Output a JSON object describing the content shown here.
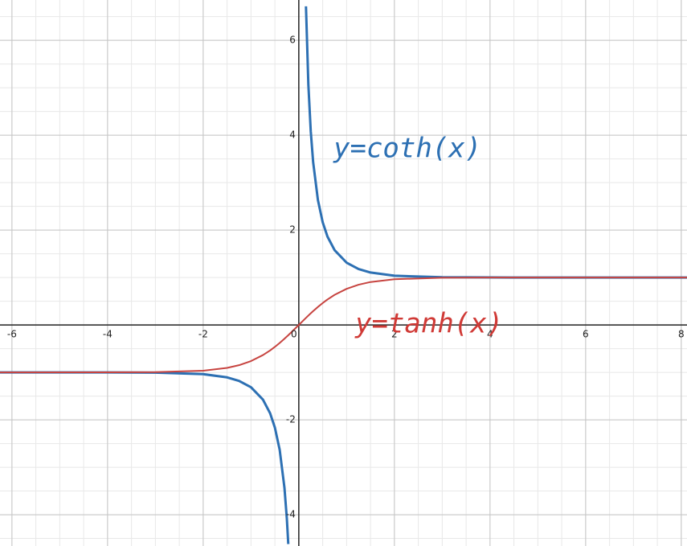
{
  "chart_data": {
    "type": "line",
    "annotations": [
      "y=coth(x)",
      "y=tanh(x)"
    ],
    "x": [
      -6.25,
      -4,
      -3,
      -2,
      -1.5,
      -1.25,
      -1,
      -0.75,
      -0.6,
      -0.5,
      -0.4,
      -0.3,
      -0.25,
      -0.22,
      0,
      0.15,
      0.2,
      0.25,
      0.3,
      0.4,
      0.5,
      0.6,
      0.75,
      1,
      1.25,
      1.5,
      2,
      3,
      4,
      6,
      8.12
    ],
    "series": [
      {
        "name": "y=coth(x)",
        "color": "#2d70b3",
        "values": [
          -1.0,
          -1.0007,
          -1.005,
          -1.0373,
          -1.1048,
          -1.1789,
          -1.313,
          -1.5744,
          -1.862,
          -2.164,
          -2.6319,
          -3.4327,
          -4.083,
          -4.6185,
          null,
          6.7163,
          5.0665,
          4.083,
          3.4327,
          2.6319,
          2.164,
          1.862,
          1.5744,
          1.313,
          1.1789,
          1.1048,
          1.0373,
          1.005,
          1.0007,
          1.0,
          1.0
        ]
      },
      {
        "name": "y=tanh(x)",
        "color": "#c74440",
        "values": [
          -1.0,
          -0.9993,
          -0.9951,
          -0.964,
          -0.9051,
          -0.8483,
          -0.7616,
          -0.6351,
          -0.537,
          -0.4621,
          -0.3799,
          -0.2913,
          -0.2449,
          -0.2165,
          0,
          0.1489,
          0.1974,
          0.2449,
          0.2913,
          0.3799,
          0.4621,
          0.537,
          0.6351,
          0.7616,
          0.8483,
          0.9051,
          0.964,
          0.9951,
          0.9993,
          1.0,
          1.0
        ]
      }
    ],
    "xlim": [
      -6.25,
      8.12
    ],
    "ylim": [
      -4.66,
      6.85
    ],
    "xticks": [
      -6,
      -4,
      -2,
      0,
      2,
      4,
      6,
      8
    ],
    "yticks": [
      -4,
      -2,
      2,
      4,
      6
    ],
    "grid": true
  }
}
